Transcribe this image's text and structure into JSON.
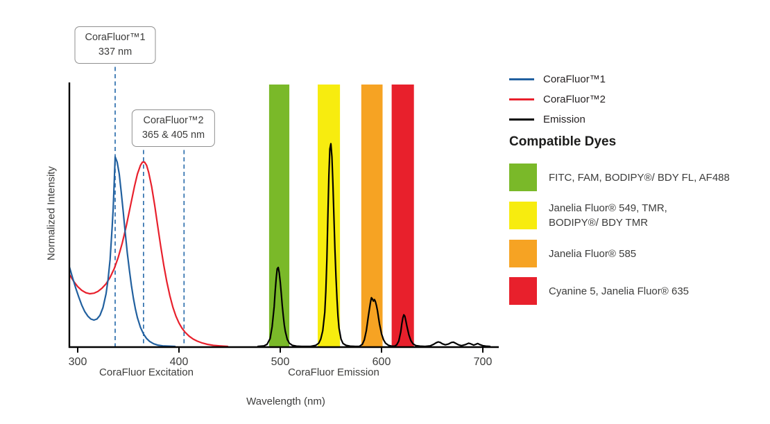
{
  "chart_data": {
    "type": "line",
    "title": "",
    "xlabel": "Wavelength (nm)",
    "ylabel": "Normalized Intensity",
    "xlim": [
      291,
      713
    ],
    "ylim": [
      0,
      1
    ],
    "grid": false,
    "legend_position": "right",
    "x_ticks": [
      300,
      400,
      500,
      600,
      700
    ],
    "x_axis_group_labels": [
      {
        "label": "CoraFluor Excitation"
      },
      {
        "label": "CoraFluor Emission"
      }
    ],
    "dashed_marker_color": "#2e6fad",
    "dashed_markers": [
      {
        "nm": 337,
        "group": 1
      },
      {
        "nm": 365,
        "group": 2
      },
      {
        "nm": 405,
        "group": 2
      }
    ],
    "bands": [
      {
        "key": "green",
        "color": "#7ab929",
        "range": [
          489,
          509
        ]
      },
      {
        "key": "yellow",
        "color": "#f7ec0f",
        "range": [
          537,
          559
        ]
      },
      {
        "key": "orange",
        "color": "#f6a323",
        "range": [
          580,
          601
        ]
      },
      {
        "key": "red",
        "color": "#e8202c",
        "range": [
          610,
          632
        ]
      }
    ],
    "series": [
      {
        "id": "corafluor2-excitation",
        "name": "CoraFluor™2",
        "color": "#e8202c",
        "peak_nm": 365,
        "points": [
          [
            292,
            0.272
          ],
          [
            296,
            0.247
          ],
          [
            300,
            0.227
          ],
          [
            304,
            0.213
          ],
          [
            308,
            0.204
          ],
          [
            312,
            0.2
          ],
          [
            316,
            0.202
          ],
          [
            320,
            0.209
          ],
          [
            324,
            0.221
          ],
          [
            328,
            0.238
          ],
          [
            332,
            0.262
          ],
          [
            336,
            0.295
          ],
          [
            340,
            0.338
          ],
          [
            344,
            0.392
          ],
          [
            348,
            0.458
          ],
          [
            352,
            0.532
          ],
          [
            356,
            0.607
          ],
          [
            359,
            0.655
          ],
          [
            362,
            0.688
          ],
          [
            364,
            0.7
          ],
          [
            366,
            0.7
          ],
          [
            368,
            0.688
          ],
          [
            370,
            0.662
          ],
          [
            373,
            0.607
          ],
          [
            376,
            0.536
          ],
          [
            379,
            0.458
          ],
          [
            382,
            0.38
          ],
          [
            385,
            0.308
          ],
          [
            388,
            0.245
          ],
          [
            391,
            0.192
          ],
          [
            394,
            0.149
          ],
          [
            397,
            0.115
          ],
          [
            400,
            0.089
          ],
          [
            403,
            0.069
          ],
          [
            406,
            0.054
          ],
          [
            410,
            0.039
          ],
          [
            414,
            0.028
          ],
          [
            418,
            0.02
          ],
          [
            423,
            0.013
          ],
          [
            428,
            0.008
          ],
          [
            434,
            0.004
          ],
          [
            440,
            0.002
          ],
          [
            448,
            0
          ]
        ]
      },
      {
        "id": "corafluor1-excitation",
        "name": "CoraFluor™1",
        "color": "#21609f",
        "peak_nm": 337,
        "points": [
          [
            292,
            0.3
          ],
          [
            295,
            0.26
          ],
          [
            298,
            0.222
          ],
          [
            301,
            0.188
          ],
          [
            304,
            0.157
          ],
          [
            307,
            0.132
          ],
          [
            310,
            0.115
          ],
          [
            313,
            0.104
          ],
          [
            316,
            0.1
          ],
          [
            319,
            0.104
          ],
          [
            322,
            0.118
          ],
          [
            325,
            0.148
          ],
          [
            328,
            0.2
          ],
          [
            330,
            0.255
          ],
          [
            332,
            0.33
          ],
          [
            334,
            0.45
          ],
          [
            335,
            0.52
          ],
          [
            336,
            0.62
          ],
          [
            337,
            0.72
          ],
          [
            339,
            0.7
          ],
          [
            341,
            0.655
          ],
          [
            343,
            0.585
          ],
          [
            345,
            0.51
          ],
          [
            347,
            0.43
          ],
          [
            349,
            0.355
          ],
          [
            351,
            0.29
          ],
          [
            353,
            0.232
          ],
          [
            355,
            0.183
          ],
          [
            357,
            0.142
          ],
          [
            359,
            0.109
          ],
          [
            362,
            0.072
          ],
          [
            365,
            0.047
          ],
          [
            368,
            0.03
          ],
          [
            371,
            0.019
          ],
          [
            375,
            0.01
          ],
          [
            379,
            0.005
          ],
          [
            384,
            0.002
          ],
          [
            390,
            0.001
          ],
          [
            396,
            0
          ]
        ]
      },
      {
        "id": "emission",
        "name": "Emission",
        "color": "#000000",
        "peak_nms": [
          498,
          550,
          590,
          622
        ],
        "points": [
          [
            478,
            0
          ],
          [
            484,
            0.002
          ],
          [
            487,
            0.008
          ],
          [
            490,
            0.03
          ],
          [
            492,
            0.075
          ],
          [
            494,
            0.15
          ],
          [
            495,
            0.21
          ],
          [
            496,
            0.26
          ],
          [
            497,
            0.295
          ],
          [
            498,
            0.3
          ],
          [
            499,
            0.28
          ],
          [
            500,
            0.245
          ],
          [
            501,
            0.2
          ],
          [
            502,
            0.155
          ],
          [
            503,
            0.115
          ],
          [
            504,
            0.082
          ],
          [
            505,
            0.057
          ],
          [
            507,
            0.026
          ],
          [
            509,
            0.012
          ],
          [
            512,
            0.004
          ],
          [
            516,
            0.001
          ],
          [
            521,
            0
          ],
          [
            530,
            0
          ],
          [
            535,
            0.004
          ],
          [
            538,
            0.012
          ],
          [
            540,
            0.028
          ],
          [
            542,
            0.06
          ],
          [
            544,
            0.13
          ],
          [
            545,
            0.21
          ],
          [
            546,
            0.33
          ],
          [
            547,
            0.49
          ],
          [
            548,
            0.65
          ],
          [
            549,
            0.75
          ],
          [
            550,
            0.77
          ],
          [
            551,
            0.72
          ],
          [
            552,
            0.62
          ],
          [
            553,
            0.49
          ],
          [
            554,
            0.37
          ],
          [
            555,
            0.265
          ],
          [
            556,
            0.18
          ],
          [
            557,
            0.115
          ],
          [
            558,
            0.07
          ],
          [
            560,
            0.028
          ],
          [
            562,
            0.011
          ],
          [
            565,
            0.004
          ],
          [
            569,
            0.001
          ],
          [
            574,
            0
          ],
          [
            578,
            0
          ],
          [
            581,
            0.008
          ],
          [
            583,
            0.025
          ],
          [
            585,
            0.06
          ],
          [
            587,
            0.115
          ],
          [
            589,
            0.165
          ],
          [
            590,
            0.185
          ],
          [
            591,
            0.18
          ],
          [
            592,
            0.172
          ],
          [
            593,
            0.178
          ],
          [
            594,
            0.17
          ],
          [
            595,
            0.155
          ],
          [
            596,
            0.135
          ],
          [
            597,
            0.11
          ],
          [
            598,
            0.085
          ],
          [
            600,
            0.048
          ],
          [
            602,
            0.025
          ],
          [
            604,
            0.012
          ],
          [
            607,
            0.004
          ],
          [
            610,
            0.001
          ],
          [
            613,
            0.001
          ],
          [
            615,
            0.006
          ],
          [
            617,
            0.02
          ],
          [
            619,
            0.055
          ],
          [
            620,
            0.085
          ],
          [
            621,
            0.108
          ],
          [
            622,
            0.12
          ],
          [
            623,
            0.115
          ],
          [
            624,
            0.098
          ],
          [
            625,
            0.078
          ],
          [
            627,
            0.044
          ],
          [
            629,
            0.022
          ],
          [
            631,
            0.01
          ],
          [
            634,
            0.003
          ],
          [
            638,
            0.001
          ],
          [
            643,
            0
          ],
          [
            648,
            0.002
          ],
          [
            651,
            0.007
          ],
          [
            654,
            0.014
          ],
          [
            656,
            0.017
          ],
          [
            658,
            0.015
          ],
          [
            660,
            0.01
          ],
          [
            663,
            0.006
          ],
          [
            666,
            0.009
          ],
          [
            669,
            0.015
          ],
          [
            671,
            0.016
          ],
          [
            673,
            0.012
          ],
          [
            676,
            0.006
          ],
          [
            679,
            0.003
          ],
          [
            683,
            0.007
          ],
          [
            686,
            0.012
          ],
          [
            688,
            0.01
          ],
          [
            691,
            0.005
          ],
          [
            693,
            0.008
          ],
          [
            695,
            0.011
          ],
          [
            697,
            0.007
          ],
          [
            700,
            0.003
          ],
          [
            703,
            0.001
          ],
          [
            707,
            0
          ]
        ]
      }
    ]
  },
  "annotations": [
    {
      "line1": "CoraFluor™1",
      "line2": "337 nm"
    },
    {
      "line1": "CoraFluor™2",
      "line2": "365 & 405 nm"
    }
  ],
  "legend": {
    "items": [
      {
        "label": "CoraFluor™1",
        "color": "#21609f"
      },
      {
        "label": "CoraFluor™2",
        "color": "#e8202c"
      },
      {
        "label": "Emission",
        "color": "#000000"
      }
    ]
  },
  "dyes": {
    "heading": "Compatible Dyes",
    "items": [
      {
        "label": "FITC, FAM, BODIPY®/ BDY FL, AF488",
        "color": "#7ab929"
      },
      {
        "label": "Janelia Fluor® 549, TMR,\nBODIPY®/ BDY TMR",
        "color": "#f7ec0f"
      },
      {
        "label": "Janelia Fluor® 585",
        "color": "#f6a323"
      },
      {
        "label": "Cyanine 5, Janelia Fluor® 635",
        "color": "#e8202c"
      }
    ]
  }
}
